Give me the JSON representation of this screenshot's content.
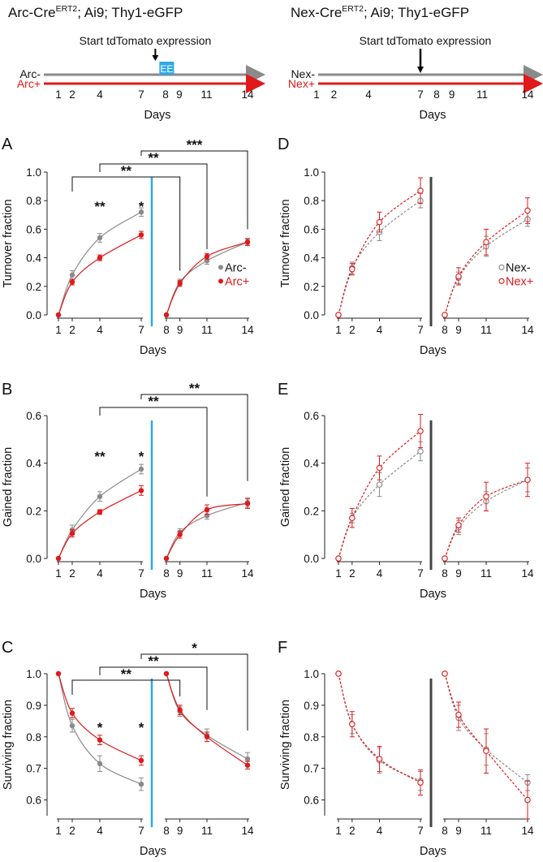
{
  "headers": {
    "left": {
      "prefix": "Arc-Cre",
      "sup": "ERT2",
      "suffix": "; Ai9; Thy1-eGFP"
    },
    "right": {
      "prefix": "Nex-Cre",
      "sup": "ERT2",
      "suffix": "; Ai9; Thy1-eGFP"
    }
  },
  "timelines": [
    {
      "id": "left",
      "start_text": "Start tdTomato expression",
      "ee_label": "EE",
      "neg_label": "Arc-",
      "pos_label": "Arc+",
      "day_ticks": [
        "1",
        "2",
        "4",
        "7",
        "8",
        "9",
        "11",
        "14"
      ],
      "xlabel": "Days",
      "arrow_day": 7.25,
      "has_ee": true
    },
    {
      "id": "right",
      "start_text": "Start tdTomato expression",
      "ee_label": "",
      "neg_label": "Nex-",
      "pos_label": "Nex+",
      "day_ticks": [
        "1",
        "2",
        "4",
        "7",
        "8",
        "9",
        "11",
        "14"
      ],
      "xlabel": "Days",
      "arrow_day": 7,
      "has_ee": false
    }
  ],
  "colors": {
    "neg": "#8a8a8a",
    "pos": "#e0191b",
    "divider_left": "#2ea9e6",
    "divider_right": "#444444",
    "ee_box": "#2ea9e6"
  },
  "chart_data": [
    {
      "panel": "A",
      "type": "line",
      "ylabel": "Turnover fraction",
      "xlabel": "Days",
      "ylim": [
        0,
        1.0
      ],
      "yticks": [
        "0.0",
        "0.2",
        "0.4",
        "0.6",
        "0.8",
        "1.0"
      ],
      "ytick_values": [
        0,
        0.2,
        0.4,
        0.6,
        0.8,
        1.0
      ],
      "x_ticks": [
        "1",
        "2",
        "4",
        "7",
        "8",
        "9",
        "11",
        "14"
      ],
      "marker": "filled",
      "fit": "solid",
      "divider": "blue",
      "legend": {
        "neg": "Arc-",
        "pos": "Arc+",
        "position": "right-middle"
      },
      "series": [
        {
          "name": "Arc-",
          "color": "neg",
          "seg1": {
            "x": [
              1,
              2,
              4,
              7
            ],
            "y": [
              0,
              0.28,
              0.54,
              0.72
            ],
            "err": [
              0,
              0.03,
              0.03,
              0.03
            ]
          },
          "seg2": {
            "x": [
              8,
              9,
              11,
              14
            ],
            "y": [
              0,
              0.23,
              0.38,
              0.51
            ],
            "err": [
              0,
              0.02,
              0.025,
              0.02
            ]
          }
        },
        {
          "name": "Arc+",
          "color": "pos",
          "seg1": {
            "x": [
              1,
              2,
              4,
              7
            ],
            "y": [
              0,
              0.23,
              0.4,
              0.56
            ],
            "err": [
              0,
              0.02,
              0.02,
              0.025
            ]
          },
          "seg2": {
            "x": [
              8,
              9,
              11,
              14
            ],
            "y": [
              0,
              0.22,
              0.41,
              0.51
            ],
            "err": [
              0,
              0.02,
              0.02,
              0.025
            ]
          }
        }
      ],
      "stars": [
        {
          "day": 4,
          "value": 0.76,
          "text": "**"
        },
        {
          "day": 7,
          "value": 0.76,
          "text": "*"
        }
      ],
      "brackets": [
        {
          "from": 7,
          "to": 14,
          "text": "***"
        },
        {
          "from": 4,
          "to": 11,
          "text": "**"
        },
        {
          "from": 2,
          "to": 9,
          "text": "**"
        }
      ]
    },
    {
      "panel": "B",
      "type": "line",
      "ylabel": "Gained fraction",
      "xlabel": "Days",
      "ylim": [
        0,
        0.6
      ],
      "yticks": [
        "0.0",
        "0.2",
        "0.4",
        "0.6"
      ],
      "ytick_values": [
        0,
        0.2,
        0.4,
        0.6
      ],
      "x_ticks": [
        "1",
        "2",
        "4",
        "7",
        "8",
        "9",
        "11",
        "14"
      ],
      "marker": "filled",
      "fit": "solid",
      "divider": "blue",
      "series": [
        {
          "name": "Arc-",
          "color": "neg",
          "seg1": {
            "x": [
              1,
              2,
              4,
              7
            ],
            "y": [
              0,
              0.12,
              0.26,
              0.375
            ],
            "err": [
              0,
              0.02,
              0.02,
              0.02
            ]
          },
          "seg2": {
            "x": [
              8,
              9,
              11,
              14
            ],
            "y": [
              0,
              0.11,
              0.18,
              0.235
            ],
            "err": [
              0,
              0.015,
              0.015,
              0.02
            ]
          }
        },
        {
          "name": "Arc+",
          "color": "pos",
          "seg1": {
            "x": [
              1,
              2,
              4,
              7
            ],
            "y": [
              0,
              0.105,
              0.195,
              0.285
            ],
            "err": [
              0,
              0.015,
              0.01,
              0.02
            ]
          },
          "seg2": {
            "x": [
              8,
              9,
              11,
              14
            ],
            "y": [
              0,
              0.1,
              0.205,
              0.23
            ],
            "err": [
              0,
              0.015,
              0.02,
              0.02
            ]
          }
        }
      ],
      "stars": [
        {
          "day": 4,
          "value": 0.43,
          "text": "**"
        },
        {
          "day": 7,
          "value": 0.43,
          "text": "*"
        }
      ],
      "brackets": [
        {
          "from": 7,
          "to": 14,
          "text": "**"
        },
        {
          "from": 4,
          "to": 11,
          "text": "**"
        }
      ]
    },
    {
      "panel": "C",
      "type": "line",
      "ylabel": "Surviving fraction",
      "xlabel": "Days",
      "ylim": [
        0.55,
        1.0
      ],
      "yticks": [
        "0.6",
        "0.7",
        "0.8",
        "0.9",
        "1.0"
      ],
      "ytick_values": [
        0.6,
        0.7,
        0.8,
        0.9,
        1.0
      ],
      "x_ticks": [
        "1",
        "2",
        "4",
        "7",
        "8",
        "9",
        "11",
        "14"
      ],
      "marker": "filled",
      "fit": "solid",
      "divider": "blue",
      "series": [
        {
          "name": "Arc-",
          "color": "neg",
          "seg1": {
            "x": [
              1,
              2,
              4,
              7
            ],
            "y": [
              1.0,
              0.835,
              0.715,
              0.65
            ],
            "err": [
              0,
              0.02,
              0.025,
              0.02
            ]
          },
          "seg2": {
            "x": [
              8,
              9,
              11,
              14
            ],
            "y": [
              1.0,
              0.88,
              0.805,
              0.73
            ],
            "err": [
              0,
              0.015,
              0.02,
              0.02
            ]
          }
        },
        {
          "name": "Arc+",
          "color": "pos",
          "seg1": {
            "x": [
              1,
              2,
              4,
              7
            ],
            "y": [
              1.0,
              0.875,
              0.79,
              0.725
            ],
            "err": [
              0,
              0.015,
              0.015,
              0.015
            ]
          },
          "seg2": {
            "x": [
              8,
              9,
              11,
              14
            ],
            "y": [
              1.0,
              0.885,
              0.8,
              0.71
            ],
            "err": [
              0,
              0.015,
              0.015,
              0.012
            ]
          }
        }
      ],
      "stars": [
        {
          "day": 4,
          "value": 0.83,
          "text": "*"
        },
        {
          "day": 7,
          "value": 0.83,
          "text": "*"
        }
      ],
      "brackets": [
        {
          "from": 7,
          "to": 14,
          "text": "*"
        },
        {
          "from": 4,
          "to": 11,
          "text": "**"
        },
        {
          "from": 2,
          "to": 9,
          "text": "**"
        }
      ]
    },
    {
      "panel": "D",
      "type": "line",
      "ylabel": "Turnover fraction",
      "xlabel": "Days",
      "ylim": [
        0,
        1.0
      ],
      "yticks": [
        "0.0",
        "0.2",
        "0.4",
        "0.6",
        "0.8",
        "1.0"
      ],
      "ytick_values": [
        0,
        0.2,
        0.4,
        0.6,
        0.8,
        1.0
      ],
      "x_ticks": [
        "1",
        "2",
        "4",
        "7",
        "8",
        "9",
        "11",
        "14"
      ],
      "marker": "open",
      "fit": "dashed",
      "divider": "dark",
      "legend": {
        "neg": "Nex-",
        "pos": "Nex+",
        "position": "right-middle"
      },
      "series": [
        {
          "name": "Nex-",
          "color": "neg",
          "seg1": {
            "x": [
              1,
              2,
              4,
              7
            ],
            "y": [
              0,
              0.33,
              0.58,
              0.8
            ],
            "err": [
              0,
              0.04,
              0.06,
              0.05
            ]
          },
          "seg2": {
            "x": [
              8,
              9,
              11,
              14
            ],
            "y": [
              0,
              0.26,
              0.48,
              0.67
            ],
            "err": [
              0,
              0.04,
              0.07,
              0.05
            ]
          }
        },
        {
          "name": "Nex+",
          "color": "pos",
          "seg1": {
            "x": [
              1,
              2,
              4,
              7
            ],
            "y": [
              0,
              0.32,
              0.65,
              0.87
            ],
            "err": [
              0,
              0.04,
              0.07,
              0.09
            ]
          },
          "seg2": {
            "x": [
              8,
              9,
              11,
              14
            ],
            "y": [
              0,
              0.27,
              0.51,
              0.73
            ],
            "err": [
              0,
              0.06,
              0.09,
              0.09
            ]
          }
        }
      ],
      "stars": [],
      "brackets": []
    },
    {
      "panel": "E",
      "type": "line",
      "ylabel": "Gained fraction",
      "xlabel": "Days",
      "ylim": [
        0,
        0.6
      ],
      "yticks": [
        "0.0",
        "0.2",
        "0.4",
        "0.6"
      ],
      "ytick_values": [
        0,
        0.2,
        0.4,
        0.6
      ],
      "x_ticks": [
        "1",
        "2",
        "4",
        "7",
        "8",
        "9",
        "11",
        "14"
      ],
      "marker": "open",
      "fit": "dashed",
      "divider": "dark",
      "series": [
        {
          "name": "Nex-",
          "color": "neg",
          "seg1": {
            "x": [
              1,
              2,
              4,
              7
            ],
            "y": [
              0,
              0.17,
              0.31,
              0.45
            ],
            "err": [
              0,
              0.02,
              0.05,
              0.04
            ]
          },
          "seg2": {
            "x": [
              8,
              9,
              11,
              14
            ],
            "y": [
              0,
              0.13,
              0.24,
              0.33
            ],
            "err": [
              0,
              0.03,
              0.04,
              0.05
            ]
          }
        },
        {
          "name": "Nex+",
          "color": "pos",
          "seg1": {
            "x": [
              1,
              2,
              4,
              7
            ],
            "y": [
              0,
              0.17,
              0.38,
              0.535
            ],
            "err": [
              0,
              0.04,
              0.05,
              0.07
            ]
          },
          "seg2": {
            "x": [
              8,
              9,
              11,
              14
            ],
            "y": [
              0,
              0.14,
              0.26,
              0.33
            ],
            "err": [
              0,
              0.03,
              0.06,
              0.07
            ]
          }
        }
      ],
      "stars": [],
      "brackets": []
    },
    {
      "panel": "F",
      "type": "line",
      "ylabel": "Surviving fraction",
      "xlabel": "Days",
      "ylim": [
        0.55,
        1.0
      ],
      "yticks": [
        "0.6",
        "0.7",
        "0.8",
        "0.9",
        "1.0"
      ],
      "ytick_values": [
        0.6,
        0.7,
        0.8,
        0.9,
        1.0
      ],
      "x_ticks": [
        "1",
        "2",
        "4",
        "7",
        "8",
        "9",
        "11",
        "14"
      ],
      "marker": "open",
      "fit": "dashed",
      "divider": "dark",
      "series": [
        {
          "name": "Nex-",
          "color": "neg",
          "seg1": {
            "x": [
              1,
              2,
              4,
              7
            ],
            "y": [
              1.0,
              0.84,
              0.725,
              0.66
            ],
            "err": [
              0,
              0.03,
              0.04,
              0.03
            ]
          },
          "seg2": {
            "x": [
              8,
              9,
              11,
              14
            ],
            "y": [
              1.0,
              0.86,
              0.76,
              0.655
            ],
            "err": [
              0,
              0.04,
              0.05,
              0.025
            ]
          }
        },
        {
          "name": "Nex+",
          "color": "pos",
          "seg1": {
            "x": [
              1,
              2,
              4,
              7
            ],
            "y": [
              1.0,
              0.84,
              0.73,
              0.655
            ],
            "err": [
              0,
              0.04,
              0.04,
              0.04
            ]
          },
          "seg2": {
            "x": [
              8,
              9,
              11,
              14
            ],
            "y": [
              1.0,
              0.87,
              0.755,
              0.6
            ],
            "err": [
              0,
              0.04,
              0.07,
              0.06
            ]
          }
        }
      ],
      "stars": [],
      "brackets": []
    }
  ]
}
